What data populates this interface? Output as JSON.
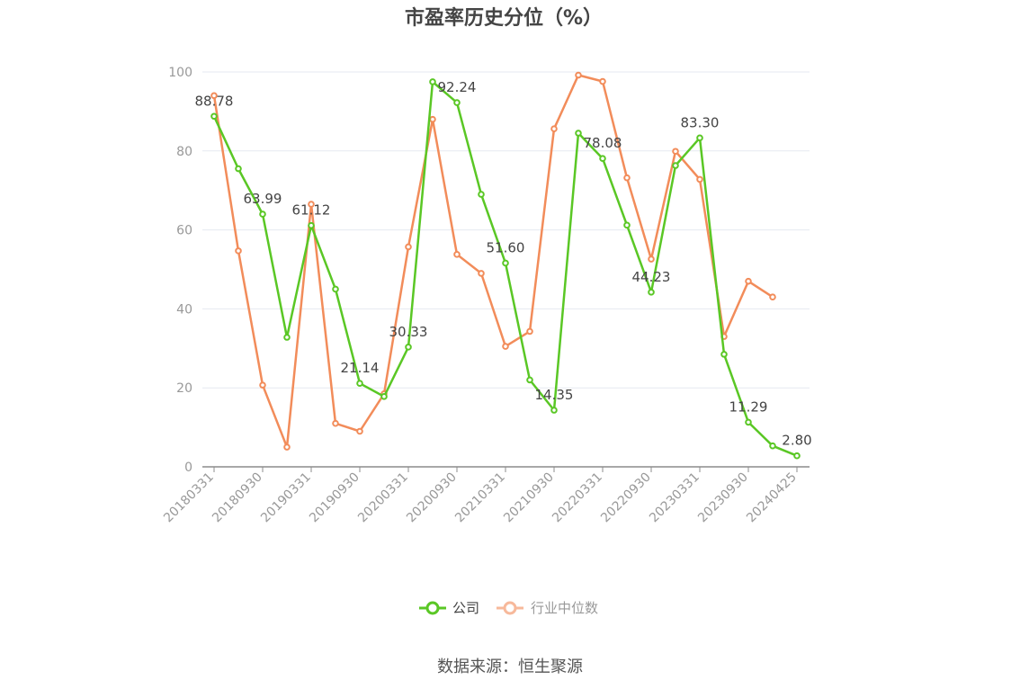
{
  "chart_data": {
    "type": "line",
    "title": "市盈率历史分位（%）",
    "source": "数据来源：恒生聚源",
    "ylim": [
      0,
      100
    ],
    "yticks": [
      0,
      20,
      40,
      60,
      80,
      100
    ],
    "x_tick_labels": [
      "20180331",
      "20180930",
      "20190331",
      "20190930",
      "20200331",
      "20200930",
      "20210331",
      "20210930",
      "20220331",
      "20220930",
      "20230331",
      "20230930",
      "20240425"
    ],
    "legend_position": "bottom",
    "grid": true,
    "series": [
      {
        "name": "公司",
        "color": "#5ac725",
        "values": [
          88.78,
          75.5,
          63.99,
          32.8,
          61.12,
          45.0,
          21.14,
          17.8,
          30.33,
          97.5,
          92.24,
          69.0,
          51.6,
          22.0,
          14.35,
          84.5,
          78.08,
          61.2,
          44.23,
          76.3,
          83.3,
          28.5,
          11.29,
          5.3,
          2.8
        ],
        "labels": {
          "0": "88.78",
          "2": "63.99",
          "4": "61.12",
          "6": "21.14",
          "8": "30.33",
          "10": "92.24",
          "12": "51.60",
          "14": "14.35",
          "16": "78.08",
          "18": "44.23",
          "20": "83.30",
          "22": "11.29",
          "24": "2.80"
        }
      },
      {
        "name": "行业中位数",
        "color": "#f28c5a",
        "values": [
          94.0,
          54.7,
          20.7,
          5.0,
          66.5,
          11.0,
          9.0,
          18.5,
          55.7,
          88.0,
          53.8,
          49.0,
          30.5,
          34.3,
          85.6,
          99.2,
          97.6,
          73.2,
          52.6,
          79.9,
          72.8,
          33.0,
          47.0,
          43.0,
          null
        ]
      }
    ]
  }
}
